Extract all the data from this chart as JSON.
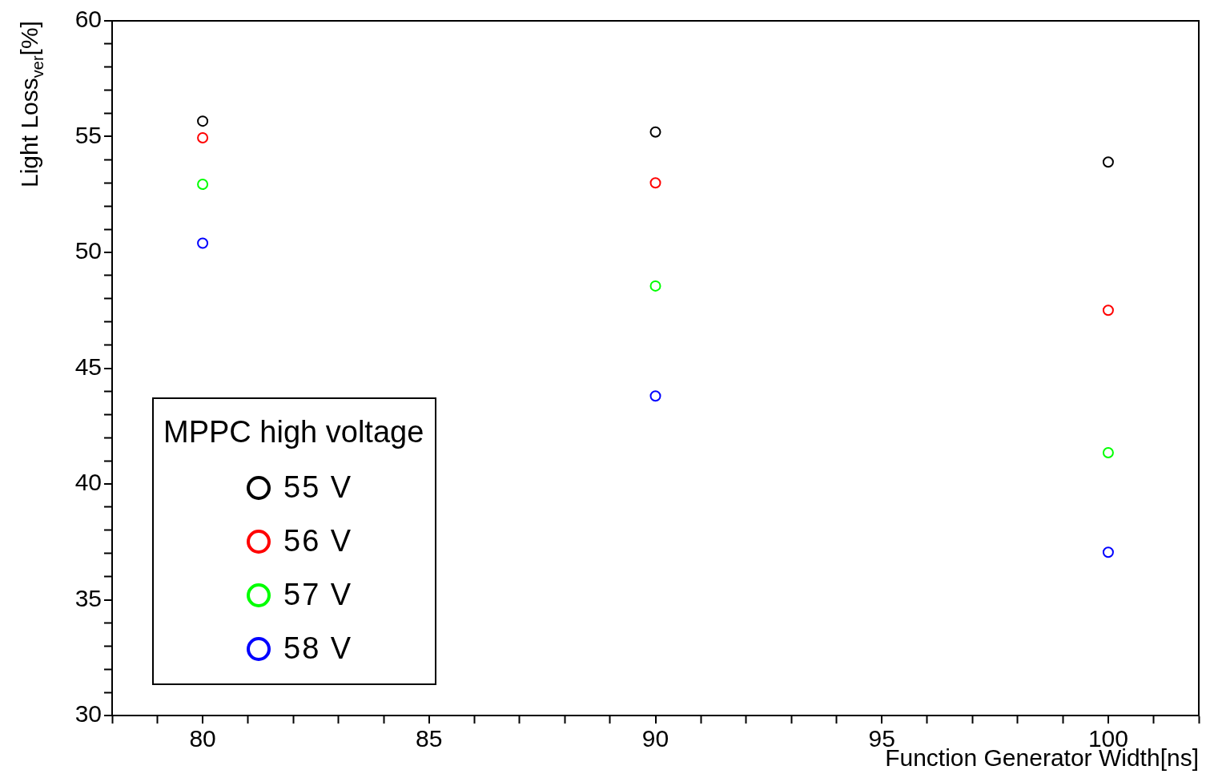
{
  "chart_data": {
    "type": "scatter",
    "xlabel": "Function Generator Width[ns]",
    "ylabel": "Light Loss$_{ver}$[%]",
    "legend_title": "MPPC high voltage",
    "legend": "bottom left",
    "marker": "circle",
    "grid": false,
    "x": [
      80,
      90,
      100
    ],
    "series": [
      {
        "name": "55  V",
        "color": "#000000",
        "values": [
          55.67,
          55.2,
          53.9
        ]
      },
      {
        "name": "56  V",
        "color": "#ff0000",
        "values": [
          54.95,
          53.0,
          47.5
        ]
      },
      {
        "name": "57  V",
        "color": "#00ff00",
        "values": [
          52.94,
          48.55,
          41.35
        ]
      },
      {
        "name": "58  V",
        "color": "#0000ff",
        "values": [
          50.4,
          43.8,
          37.05
        ]
      }
    ],
    "xlim": [
      78,
      102
    ],
    "xticks": [
      {
        "value": 78,
        "label": null
      },
      {
        "value": 79,
        "label": null
      },
      80,
      {
        "value": 81,
        "label": null
      },
      {
        "value": 82,
        "label": null
      },
      {
        "value": 83,
        "label": null
      },
      {
        "value": 84,
        "label": null
      },
      85,
      {
        "value": 86,
        "label": null
      },
      {
        "value": 87,
        "label": null
      },
      {
        "value": 88,
        "label": null
      },
      {
        "value": 89,
        "label": null
      },
      90,
      {
        "value": 91,
        "label": null
      },
      {
        "value": 92,
        "label": null
      },
      {
        "value": 93,
        "label": null
      },
      {
        "value": 94,
        "label": null
      },
      95,
      {
        "value": 96,
        "label": null
      },
      {
        "value": 97,
        "label": null
      },
      {
        "value": 98,
        "label": null
      },
      {
        "value": 99,
        "label": null
      },
      100,
      {
        "value": 101,
        "label": null
      },
      {
        "value": 102,
        "label": null
      }
    ],
    "ylim": [
      30,
      60
    ],
    "yticks": [
      30,
      {
        "value": 31,
        "label": null
      },
      {
        "value": 32,
        "label": null
      },
      {
        "value": 33,
        "label": null
      },
      {
        "value": 34,
        "label": null
      },
      35,
      {
        "value": 36,
        "label": null
      },
      {
        "value": 37,
        "label": null
      },
      {
        "value": 38,
        "label": null
      },
      {
        "value": 39,
        "label": null
      },
      40,
      {
        "value": 41,
        "label": null
      },
      {
        "value": 42,
        "label": null
      },
      {
        "value": 43,
        "label": null
      },
      {
        "value": 44,
        "label": null
      },
      45,
      {
        "value": 46,
        "label": null
      },
      {
        "value": 47,
        "label": null
      },
      {
        "value": 48,
        "label": null
      },
      {
        "value": 49,
        "label": null
      },
      50,
      {
        "value": 51,
        "label": null
      },
      {
        "value": 52,
        "label": null
      },
      {
        "value": 53,
        "label": null
      },
      {
        "value": 54,
        "label": null
      },
      55,
      {
        "value": 56,
        "label": null
      },
      {
        "value": 57,
        "label": null
      },
      {
        "value": 58,
        "label": null
      },
      {
        "value": 59,
        "label": null
      },
      60
    ]
  }
}
